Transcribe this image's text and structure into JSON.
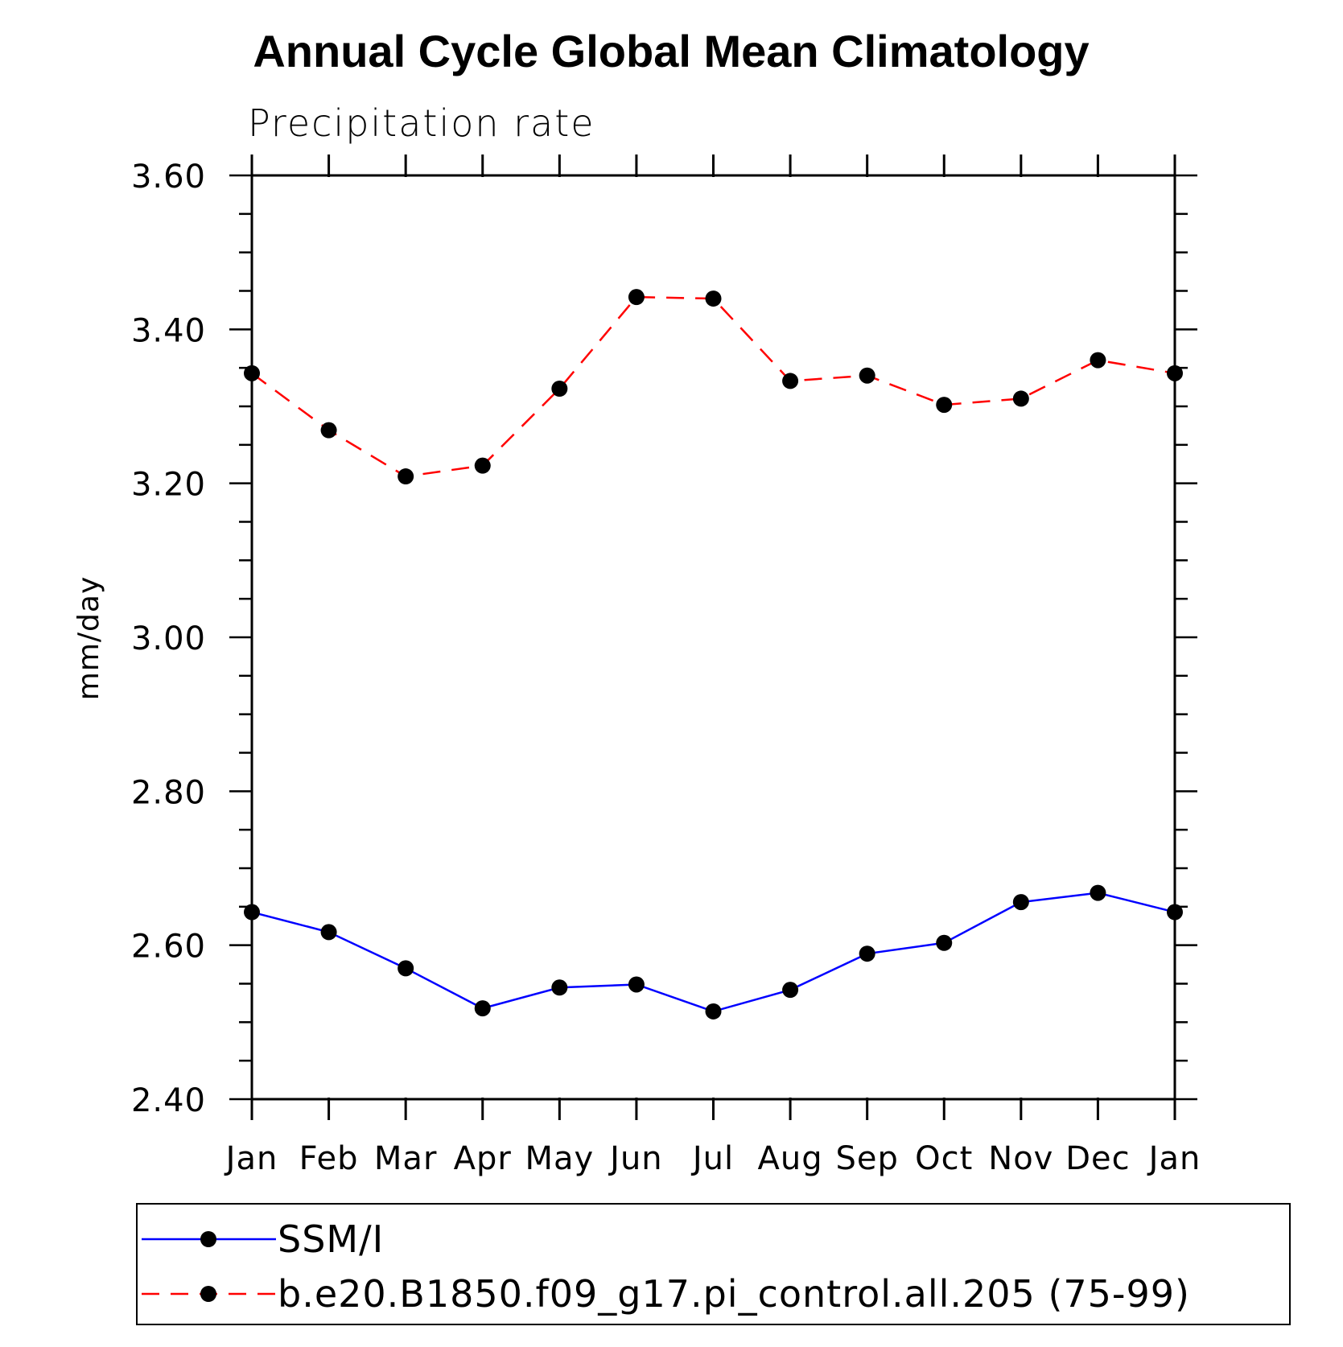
{
  "chart_data": {
    "type": "line",
    "title": "Annual Cycle Global Mean Climatology",
    "subtitle": "Precipitation rate",
    "xlabel": "",
    "ylabel": "mm/day",
    "categories": [
      "Jan",
      "Feb",
      "Mar",
      "Apr",
      "May",
      "Jun",
      "Jul",
      "Aug",
      "Sep",
      "Oct",
      "Nov",
      "Dec",
      "Jan"
    ],
    "ylim": [
      2.4,
      3.6
    ],
    "yticks": [
      "2.40",
      "2.60",
      "2.80",
      "3.00",
      "3.20",
      "3.40",
      "3.60"
    ],
    "grid": false,
    "legend_position": "bottom",
    "series": [
      {
        "name": "SSM/I",
        "color": "#0000ff",
        "line_style": "solid",
        "marker": "filled-circle",
        "values": [
          2.643,
          2.617,
          2.57,
          2.518,
          2.545,
          2.549,
          2.514,
          2.542,
          2.589,
          2.603,
          2.656,
          2.668,
          2.643
        ]
      },
      {
        "name": "b.e20.B1850.f09_g17.pi_control.all.205 (75-99)",
        "color": "#ff0000",
        "line_style": "dashed",
        "marker": "filled-circle",
        "values": [
          3.343,
          3.269,
          3.209,
          3.223,
          3.323,
          3.442,
          3.44,
          3.333,
          3.34,
          3.302,
          3.31,
          3.36,
          3.343
        ]
      }
    ]
  }
}
